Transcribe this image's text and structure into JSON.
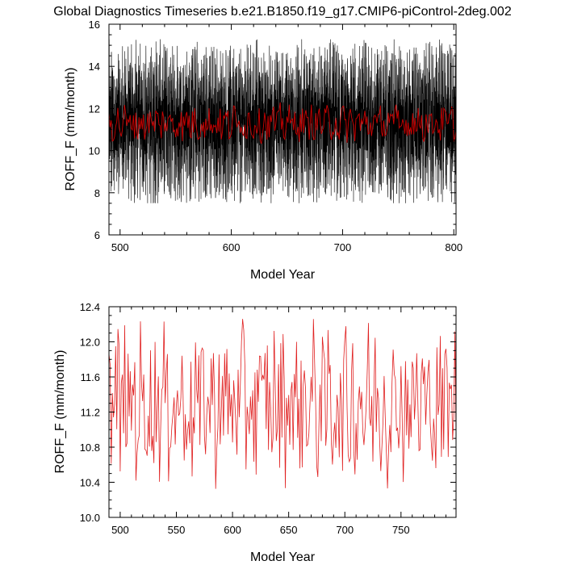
{
  "title": "Global Diagnostics Timeseries b.e21.B1850.f19_g17.CMIP6-piControl-2deg.002",
  "colors": {
    "monthly": "#000000",
    "annual": "#cc0000",
    "annual_only": "#e02020"
  },
  "chart_data": [
    {
      "type": "line",
      "xlabel": "Model Year",
      "ylabel": "ROFF_F (mm/month)",
      "xlim": [
        490,
        802
      ],
      "ylim": [
        6,
        16
      ],
      "xticks": [
        500,
        600,
        700,
        800
      ],
      "yticks": [
        6,
        8,
        10,
        12,
        14,
        16
      ],
      "ytick_labels": [
        "6",
        "8",
        "10",
        "12",
        "14",
        "16"
      ],
      "grid": false,
      "series": [
        {
          "resolution": "monthly",
          "mean": 11.3,
          "range": [
            7.5,
            15.8
          ]
        },
        {
          "resolution": "annual",
          "mean": 11.3,
          "range": [
            10.2,
            12.3
          ]
        }
      ]
    },
    {
      "type": "line",
      "xlabel": "Model Year",
      "ylabel": "ROFF_F (mm/month)",
      "xlim": [
        490,
        799
      ],
      "ylim": [
        10.0,
        12.4
      ],
      "xticks": [
        500,
        550,
        600,
        650,
        700,
        750
      ],
      "yticks": [
        10.0,
        10.4,
        10.8,
        11.2,
        11.6,
        12.0,
        12.4
      ],
      "ytick_labels": [
        "10.0",
        "10.4",
        "10.8",
        "11.2",
        "11.6",
        "12.0",
        "12.4"
      ],
      "grid": false,
      "series": [
        {
          "resolution": "annual",
          "mean": 11.3,
          "range": [
            10.12,
            12.26
          ]
        }
      ]
    }
  ]
}
